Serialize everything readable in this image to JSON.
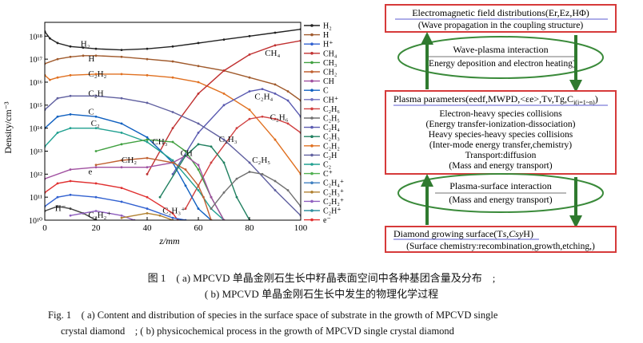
{
  "chart_data": {
    "type": "line",
    "xlabel": "z/mm",
    "ylabel": "Density/cm⁻³",
    "xlim": [
      0,
      100
    ],
    "ylim_log10": [
      10,
      18.6
    ],
    "yscale": "log",
    "x_ticks": [
      "0",
      "20",
      "40",
      "60",
      "80",
      "100"
    ],
    "y_ticks": [
      "10¹⁰",
      "10¹¹",
      "10¹²",
      "10¹³",
      "10¹⁴",
      "10¹⁵",
      "10¹⁶",
      "10¹⁷",
      "10¹⁸"
    ],
    "grid": false,
    "legend_position": "right",
    "series": [
      {
        "name": "H₂",
        "label": "H₂",
        "color": "#222222",
        "x": [
          0,
          2,
          5,
          10,
          15,
          20,
          30,
          40,
          50,
          60,
          70,
          80,
          90,
          100
        ],
        "log10_y": [
          18.2,
          17.9,
          17.7,
          17.55,
          17.5,
          17.45,
          17.4,
          17.45,
          17.55,
          17.7,
          17.85,
          18.0,
          18.15,
          18.3
        ]
      },
      {
        "name": "H",
        "label": "H",
        "color": "#a05a2c",
        "x": [
          0,
          5,
          10,
          15,
          20,
          30,
          40,
          50,
          60,
          70,
          80,
          90,
          95,
          100
        ],
        "log10_y": [
          16.8,
          17.0,
          17.1,
          17.15,
          17.15,
          17.1,
          17.0,
          16.9,
          16.7,
          16.5,
          16.2,
          15.9,
          15.6,
          15.2
        ]
      },
      {
        "name": "C₂H₂",
        "label": "C₂H₂",
        "color": "#e07020",
        "x": [
          0,
          2,
          5,
          10,
          20,
          30,
          40,
          50,
          60,
          70,
          80,
          90,
          100
        ],
        "log10_y": [
          16.3,
          16.1,
          16.2,
          16.3,
          16.35,
          16.35,
          16.3,
          16.2,
          16.0,
          15.5,
          14.8,
          13.5,
          12.0
        ]
      },
      {
        "name": "CH₄",
        "label": "CH₄",
        "color": "#c03030",
        "x": [
          40,
          50,
          60,
          70,
          80,
          90,
          100
        ],
        "log10_y": [
          12.0,
          14.0,
          15.5,
          16.5,
          17.2,
          17.6,
          17.8
        ]
      },
      {
        "name": "C₂H₄",
        "label": "C₂H₄",
        "color": "#5a5ab0",
        "x": [
          50,
          60,
          70,
          80,
          85,
          90,
          95,
          100
        ],
        "log10_y": [
          12.0,
          13.8,
          15.0,
          15.6,
          15.7,
          15.5,
          15.2,
          14.5
        ]
      },
      {
        "name": "C₂H₆",
        "label": "C₂H₆",
        "color": "#d04040",
        "x": [
          55,
          65,
          75,
          80,
          85,
          90,
          95,
          100
        ],
        "log10_y": [
          10.5,
          12.5,
          14.0,
          14.4,
          14.5,
          14.4,
          14.2,
          13.8
        ]
      },
      {
        "name": "C₂H",
        "label": "C₂H",
        "color": "#6060a0",
        "x": [
          0,
          5,
          10,
          20,
          30,
          40,
          50,
          60,
          70,
          80,
          90,
          100
        ],
        "log10_y": [
          14.8,
          15.3,
          15.4,
          15.4,
          15.3,
          15.1,
          14.7,
          14.2,
          13.5,
          12.5,
          11.3,
          10.2
        ]
      },
      {
        "name": "C",
        "label": "C",
        "color": "#1060c0",
        "x": [
          0,
          5,
          10,
          20,
          30,
          40,
          50,
          55,
          60,
          65
        ],
        "log10_y": [
          14.0,
          14.5,
          14.6,
          14.5,
          14.2,
          13.6,
          12.5,
          11.5,
          10.5,
          10.0
        ]
      },
      {
        "name": "C₂",
        "label": "C₂",
        "color": "#20a090",
        "x": [
          0,
          5,
          10,
          20,
          30,
          40,
          50,
          60,
          65,
          70
        ],
        "log10_y": [
          13.2,
          13.8,
          14.0,
          14.0,
          13.8,
          13.4,
          12.6,
          11.3,
          10.5,
          10.0
        ]
      },
      {
        "name": "CH₃",
        "label": "CH₃",
        "color": "#40a040",
        "x": [
          20,
          30,
          40,
          50,
          55,
          60,
          65,
          70
        ],
        "log10_y": [
          13.0,
          13.3,
          13.5,
          13.4,
          13.0,
          12.2,
          11.0,
          10.0
        ]
      },
      {
        "name": "CH",
        "label": "CH",
        "color": "#a050a0",
        "x": [
          0,
          10,
          20,
          30,
          40,
          50,
          55,
          60,
          65,
          70
        ],
        "log10_y": [
          11.8,
          12.2,
          12.3,
          12.3,
          12.3,
          12.5,
          12.8,
          12.4,
          11.0,
          10.0
        ]
      },
      {
        "name": "CH₂",
        "label": "CH₂",
        "color": "#c06030",
        "x": [
          20,
          30,
          40,
          50,
          55,
          60,
          62,
          65
        ],
        "log10_y": [
          12.4,
          12.6,
          12.7,
          12.5,
          12.2,
          11.5,
          11.0,
          10.0
        ]
      },
      {
        "name": "e⁻",
        "label": "e",
        "color": "#e03030",
        "x": [
          0,
          5,
          10,
          20,
          30,
          40,
          50,
          52
        ],
        "log10_y": [
          11.2,
          11.6,
          11.7,
          11.6,
          11.4,
          11.0,
          10.3,
          10.0
        ]
      },
      {
        "name": "C₂H₃",
        "label": "C₂H₃",
        "color": "#208060",
        "x": [
          45,
          55,
          60,
          65,
          70,
          75,
          80
        ],
        "log10_y": [
          11.0,
          12.8,
          13.3,
          13.2,
          12.5,
          11.0,
          10.0
        ]
      },
      {
        "name": "C₂H₅",
        "label": "C₂H₅",
        "color": "#707070",
        "x": [
          65,
          70,
          75,
          80,
          85,
          90,
          95,
          100
        ],
        "log10_y": [
          10.5,
          11.2,
          11.8,
          12.1,
          12.0,
          11.7,
          11.3,
          10.6
        ]
      },
      {
        "name": "H⁺",
        "label": "",
        "color": "#3060d0",
        "x": [
          0,
          5,
          10,
          20,
          30,
          40,
          50,
          55
        ],
        "log10_y": [
          10.6,
          11.0,
          11.1,
          11.0,
          10.8,
          10.5,
          10.1,
          10.0
        ]
      },
      {
        "name": "H⁻",
        "label": "H⁻",
        "color": "#404040",
        "x": [
          0,
          5,
          10,
          15,
          20
        ],
        "log10_y": [
          10.4,
          10.6,
          10.5,
          10.3,
          10.0
        ]
      },
      {
        "name": "C₂H₂⁺",
        "label": "C₂H₂⁺",
        "color": "#9060c0",
        "x": [
          10,
          20,
          30,
          35
        ],
        "log10_y": [
          10.2,
          10.4,
          10.2,
          10.0
        ]
      },
      {
        "name": "C₂H₃⁺",
        "label": "C₂H₃⁺",
        "color": "#b08030",
        "x": [
          30,
          40,
          45,
          50
        ],
        "log10_y": [
          10.1,
          10.3,
          10.2,
          10.0
        ]
      }
    ],
    "legend_entries": [
      {
        "name": "H₂",
        "color": "#222222"
      },
      {
        "name": "H",
        "color": "#a05a2c"
      },
      {
        "name": "H⁺",
        "color": "#3060d0"
      },
      {
        "name": "CH₄",
        "color": "#c03030"
      },
      {
        "name": "CH₃",
        "color": "#40a040"
      },
      {
        "name": "CH₂",
        "color": "#c06030"
      },
      {
        "name": "CH",
        "color": "#a050a0"
      },
      {
        "name": "C",
        "color": "#1060c0"
      },
      {
        "name": "CH⁺",
        "color": "#7070c0"
      },
      {
        "name": "C₂H₆",
        "color": "#d04040"
      },
      {
        "name": "C₂H₅",
        "color": "#707070"
      },
      {
        "name": "C₂H₄",
        "color": "#5a5ab0"
      },
      {
        "name": "C₂H₃",
        "color": "#208060"
      },
      {
        "name": "C₂H₂",
        "color": "#e07020"
      },
      {
        "name": "C₂H",
        "color": "#6060a0"
      },
      {
        "name": "C₂",
        "color": "#20a090"
      },
      {
        "name": "C⁺",
        "color": "#50b050"
      },
      {
        "name": "C₂H₄⁺",
        "color": "#4080c0"
      },
      {
        "name": "C₂H₃⁺",
        "color": "#b08030"
      },
      {
        "name": "C₂H₂⁺",
        "color": "#9060c0"
      },
      {
        "name": "C₂H⁺",
        "color": "#3090a0"
      },
      {
        "name": "e⁻",
        "color": "#e03030"
      }
    ]
  },
  "diagram": {
    "box_em_title": "Electromagnetic field distributions(Er,Ez,HΦ)",
    "box_em_sub": "(Wave propagation in the coupling structure)",
    "ellipse_wave_title": "Wave-plasma interaction",
    "ellipse_wave_sub": "(Energy deposition and electron heating)",
    "box_plasma_title": "Plasma parameters(eedf,MWPD,<εe>,Tv,Tg,C",
    "box_plasma_title_sub": "i(i=1~n)",
    "box_plasma_title_end": ")",
    "box_plasma_lines": [
      "Electron-heavy species collisions",
      "(Energy transfer-ionization-dissociation)",
      "Heavy species-heavy species collisions",
      "(Inter-mode energy transfer,chemistry)",
      "Transport:diffusion",
      "(Mass and energy transport)"
    ],
    "ellipse_surface_title": "Plasma-surface interaction",
    "ellipse_surface_sub": "(Mass and energy transport)",
    "box_diamond_title": "Diamond growing surface(T",
    "box_diamond_title_rest": "s,Csy",
    "box_diamond_title_end": "H)",
    "box_diamond_sub": "(Surface chemistry:recombination,growth,etching,)",
    "border_color": "#d63a3a",
    "ellipse_color": "#3a8a3a",
    "arrow_color": "#2f7a2f"
  },
  "caption": {
    "zh_line1": "图 1　( a) MPCVD 单晶金刚石生长中籽晶表面空间中各种基团含量及分布　;",
    "zh_line2": "( b) MPCVD 单晶金刚石生长中发生的物理化学过程",
    "en_line1": "Fig. 1　( a) Content and distribution of species in the surface space of substrate in the growth of MPCVD single",
    "en_line2": "crystal diamond　; ( b) physicochemical process in the growth of MPCVD single crystal diamond"
  }
}
